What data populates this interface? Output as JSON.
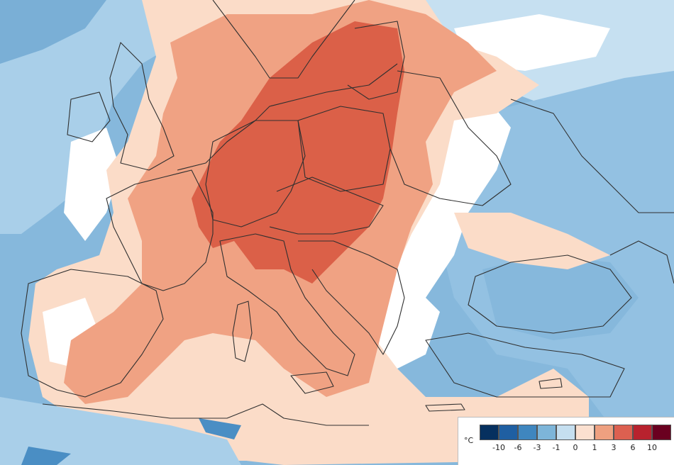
{
  "legend": {
    "unit": "°C",
    "colors": [
      "#06305f",
      "#1f5fa2",
      "#3f86bf",
      "#7db5d9",
      "#c5dff0",
      "#fbe0d0",
      "#eea080",
      "#dc6050",
      "#b8222e",
      "#6a0020"
    ],
    "ticks": [
      "-10",
      "-6",
      "-3",
      "-1",
      "0",
      "1",
      "3",
      "6",
      "10"
    ]
  },
  "palette": {
    "sea_base": "#7fb2d8",
    "land_light_blue": "#c5dff0",
    "land_mid_blue": "#97c3e3",
    "near_zero": "#ffffff",
    "light_warm": "#fbdcc8",
    "warm": "#f0a283",
    "hot": "#db6048",
    "border": "#303030"
  }
}
